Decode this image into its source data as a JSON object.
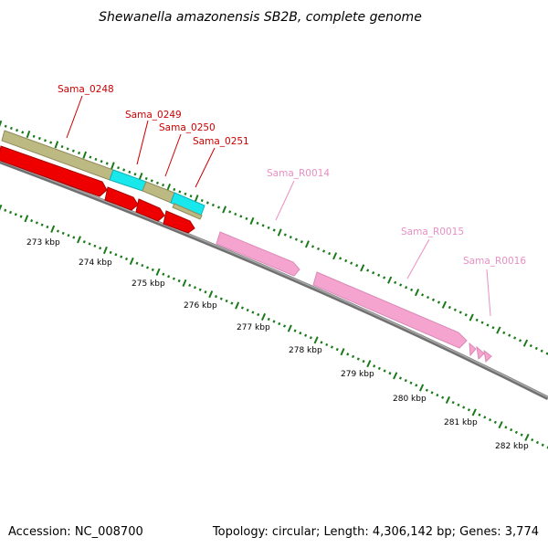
{
  "title": "Shewanella amazonensis SB2B, complete genome",
  "footer": {
    "accession": "Accession: NC_008700",
    "info": "Topology: circular; Length: 4,306,142 bp; Genes: 3,774"
  },
  "colors": {
    "cds": "#ee0000",
    "cds_edge": "#aa0000",
    "rrna": "#f5a3cf",
    "rrna_edge": "#d98ab7",
    "cog": "#bdb982",
    "cog_edge": "#8f8b5a",
    "cog_alt": "#18e8ec",
    "tick": "#1a7a1a",
    "backbone": "#808080",
    "label_red": "#cc0000",
    "label_pink": "#e98fc4"
  },
  "kbp_labels": [
    "273 kbp",
    "274 kbp",
    "275 kbp",
    "276 kbp",
    "277 kbp",
    "278 kbp",
    "279 kbp",
    "280 kbp",
    "281 kbp",
    "282 kbp"
  ],
  "gene_labels": [
    {
      "id": "Sama_0248",
      "kind": "cds"
    },
    {
      "id": "Sama_0249",
      "kind": "cds"
    },
    {
      "id": "Sama_0250",
      "kind": "cds"
    },
    {
      "id": "Sama_0251",
      "kind": "cds"
    },
    {
      "id": "Sama_R0014",
      "kind": "rrna"
    },
    {
      "id": "Sama_R0015",
      "kind": "rrna"
    },
    {
      "id": "Sama_R0016",
      "kind": "rrna"
    }
  ]
}
